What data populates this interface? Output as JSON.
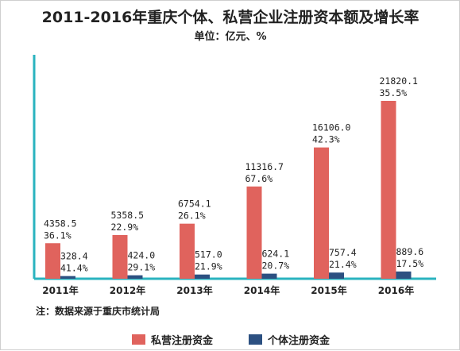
{
  "chart_data": {
    "type": "bar",
    "title": "2011-2016年重庆个体、私营企业注册资本额及增长率",
    "subtitle": "单位：亿元、%",
    "categories": [
      "2011年",
      "2012年",
      "2013年",
      "2014年",
      "2015年",
      "2016年"
    ],
    "series": [
      {
        "name": "私营注册资金",
        "color": "#e0635d",
        "values": [
          4358.5,
          5358.5,
          6754.1,
          11316.7,
          16106.0,
          21820.1
        ],
        "value_labels": [
          "4358.5",
          "5358.5",
          "6754.1",
          "11316.7",
          "16106.0",
          "21820.1"
        ],
        "growth_labels": [
          "36.1%",
          "22.9%",
          "26.1%",
          "67.6%",
          "42.3%",
          "35.5%"
        ]
      },
      {
        "name": "个体注册资金",
        "color": "#2c5081",
        "values": [
          328.4,
          424.0,
          517.0,
          624.1,
          757.4,
          889.6
        ],
        "value_labels": [
          "328.4",
          "424.0",
          "517.0",
          "624.1",
          "757.4",
          "889.6"
        ],
        "growth_labels": [
          "41.4%",
          "29.1%",
          "21.9%",
          "20.7%",
          "21.4%",
          "17.5%"
        ]
      }
    ],
    "note": "注：数据来源于重庆市统计局",
    "legend_position": "bottom",
    "axis_color": "#2ab3bf",
    "grid": false
  }
}
